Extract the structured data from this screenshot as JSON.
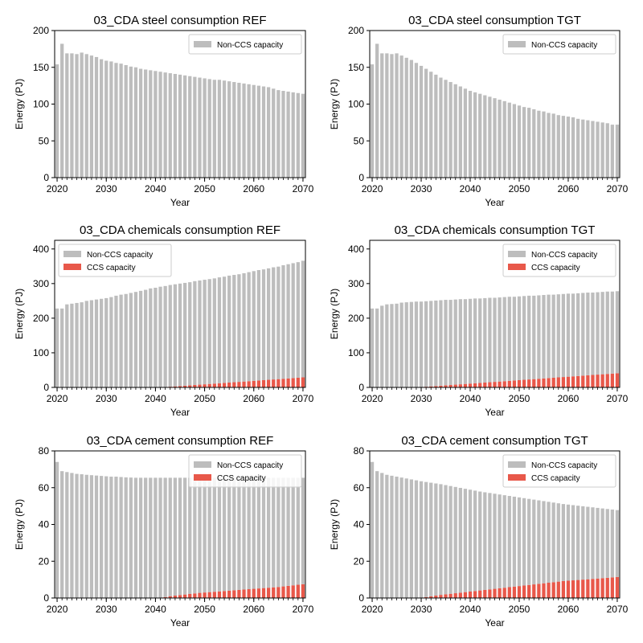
{
  "colors": {
    "ccs": "#e8584a",
    "nonccs": "#bdbdbd",
    "axis": "#000000",
    "background": "#ffffff"
  },
  "chart_data": [
    {
      "type": "bar",
      "stacked": true,
      "title": "03_CDA steel consumption REF",
      "xlabel": "Year",
      "ylabel": "Energy (PJ)",
      "x_start": 2020,
      "x_end": 2070,
      "xticks": [
        2020,
        2030,
        2040,
        2050,
        2060,
        2070
      ],
      "ylim": [
        0,
        200
      ],
      "yticks": [
        0,
        50,
        100,
        150,
        200
      ],
      "legend": "top-right",
      "series": [
        {
          "name": "Non-CCS capacity",
          "color": "#bdbdbd",
          "values": [
            154,
            182,
            169,
            169,
            168,
            170,
            168,
            166,
            164,
            161,
            159,
            158,
            156,
            155,
            153,
            151,
            150,
            148,
            147,
            146,
            145,
            144,
            143,
            142,
            141,
            140,
            139,
            138,
            137,
            136,
            135,
            134,
            133,
            133,
            132,
            131,
            130,
            129,
            128,
            127,
            126,
            125,
            124,
            123,
            121,
            119,
            118,
            117,
            116,
            115,
            114
          ]
        }
      ]
    },
    {
      "type": "bar",
      "stacked": true,
      "title": "03_CDA steel consumption TGT",
      "xlabel": "Year",
      "ylabel": "Energy (PJ)",
      "x_start": 2020,
      "x_end": 2070,
      "xticks": [
        2020,
        2030,
        2040,
        2050,
        2060,
        2070
      ],
      "ylim": [
        0,
        200
      ],
      "yticks": [
        0,
        50,
        100,
        150,
        200
      ],
      "legend": "top-right",
      "series": [
        {
          "name": "Non-CCS capacity",
          "color": "#bdbdbd",
          "values": [
            154,
            182,
            169,
            169,
            168,
            169,
            166,
            163,
            160,
            156,
            152,
            148,
            144,
            140,
            136,
            133,
            130,
            127,
            124,
            121,
            118,
            116,
            114,
            112,
            110,
            108,
            106,
            104,
            102,
            100,
            98,
            96,
            95,
            93,
            91,
            90,
            88,
            87,
            85,
            84,
            83,
            82,
            80,
            79,
            78,
            77,
            76,
            75,
            74,
            72,
            72
          ]
        }
      ]
    },
    {
      "type": "bar",
      "stacked": true,
      "title": "03_CDA chemicals consumption REF",
      "xlabel": "Year",
      "ylabel": "Energy (PJ)",
      "x_start": 2020,
      "x_end": 2070,
      "xticks": [
        2020,
        2030,
        2040,
        2050,
        2060,
        2070
      ],
      "ylim": [
        0,
        425
      ],
      "yticks": [
        0,
        100,
        200,
        300,
        400
      ],
      "legend": "top-left",
      "series": [
        {
          "name": "CCS capacity",
          "color": "#e8584a",
          "values": [
            0,
            0,
            0,
            0,
            0,
            0,
            0,
            0,
            0,
            0,
            0,
            0,
            0,
            0,
            0,
            0,
            0,
            0,
            0,
            0,
            0,
            0,
            1,
            2,
            3,
            4,
            5,
            6,
            7,
            8,
            9,
            10,
            11,
            12,
            13,
            14,
            15,
            16,
            17,
            18,
            19,
            20,
            21,
            22,
            23,
            24,
            25,
            26,
            27,
            28,
            29
          ]
        },
        {
          "name": "Non-CCS capacity",
          "color": "#bdbdbd",
          "values": [
            228,
            228,
            240,
            242,
            244,
            246,
            250,
            252,
            254,
            256,
            258,
            261,
            265,
            268,
            270,
            273,
            276,
            279,
            282,
            286,
            288,
            291,
            292,
            294,
            295,
            296,
            297,
            298,
            300,
            301,
            302,
            303,
            304,
            306,
            307,
            309,
            310,
            311,
            313,
            315,
            317,
            319,
            320,
            322,
            324,
            325,
            328,
            330,
            332,
            334,
            337
          ]
        }
      ]
    },
    {
      "type": "bar",
      "stacked": true,
      "title": "03_CDA chemicals consumption TGT",
      "xlabel": "Year",
      "ylabel": "Energy (PJ)",
      "x_start": 2020,
      "x_end": 2070,
      "xticks": [
        2020,
        2030,
        2040,
        2050,
        2060,
        2070
      ],
      "ylim": [
        0,
        425
      ],
      "yticks": [
        0,
        100,
        200,
        300,
        400
      ],
      "legend": "top-right",
      "series": [
        {
          "name": "CCS capacity",
          "color": "#e8584a",
          "values": [
            0,
            0,
            0,
            0,
            0,
            0,
            0,
            0,
            0,
            0,
            1,
            2,
            3,
            4,
            5,
            6,
            7,
            8,
            9,
            10,
            11,
            12,
            13,
            14,
            15,
            16,
            17,
            18,
            19,
            20,
            21,
            22,
            23,
            24,
            25,
            26,
            27,
            28,
            29,
            30,
            31,
            32,
            33,
            34,
            35,
            36,
            37,
            38,
            39,
            40,
            41
          ]
        },
        {
          "name": "Non-CCS capacity",
          "color": "#bdbdbd",
          "values": [
            228,
            228,
            236,
            240,
            241,
            242,
            245,
            246,
            247,
            248,
            247,
            247,
            247,
            247,
            247,
            247,
            246,
            246,
            246,
            245,
            245,
            245,
            244,
            244,
            244,
            243,
            243,
            243,
            243,
            242,
            242,
            242,
            242,
            241,
            241,
            241,
            241,
            240,
            240,
            240,
            240,
            239,
            239,
            239,
            239,
            238,
            238,
            238,
            238,
            237,
            237
          ]
        }
      ]
    },
    {
      "type": "bar",
      "stacked": true,
      "title": "03_CDA cement consumption REF",
      "xlabel": "Year",
      "ylabel": "Energy (PJ)",
      "x_start": 2020,
      "x_end": 2070,
      "xticks": [
        2020,
        2030,
        2040,
        2050,
        2060,
        2070
      ],
      "ylim": [
        0,
        80
      ],
      "yticks": [
        0,
        20,
        40,
        60,
        80
      ],
      "legend": "top-right",
      "series": [
        {
          "name": "CCS capacity",
          "color": "#e8584a",
          "values": [
            0,
            0,
            0,
            0,
            0,
            0,
            0,
            0,
            0,
            0,
            0,
            0,
            0,
            0,
            0,
            0,
            0,
            0,
            0,
            0,
            0,
            0,
            0.5,
            1,
            1.3,
            1.6,
            1.9,
            2.2,
            2.5,
            2.8,
            3.0,
            3.2,
            3.4,
            3.6,
            3.8,
            4.0,
            4.2,
            4.4,
            4.6,
            4.8,
            5.0,
            5.2,
            5.4,
            5.6,
            5.8,
            6.0,
            6.3,
            6.6,
            6.9,
            7.2,
            7.5
          ]
        },
        {
          "name": "Non-CCS capacity",
          "color": "#bdbdbd",
          "values": [
            74,
            69,
            68.5,
            68,
            67.5,
            67.3,
            67,
            66.8,
            66.6,
            66.4,
            66.2,
            66,
            66,
            65.8,
            65.6,
            65.5,
            65.4,
            65.4,
            65.4,
            65.4,
            65.4,
            65.4,
            64.9,
            64.4,
            64.1,
            63.8,
            63.5,
            63.2,
            62.9,
            62.6,
            62.4,
            62.2,
            62.0,
            61.8,
            61.6,
            61.4,
            61.2,
            61.0,
            60.8,
            60.6,
            60.4,
            60.2,
            60.0,
            59.8,
            59.6,
            59.4,
            59.1,
            58.8,
            58.5,
            58.2,
            57.9
          ]
        }
      ]
    },
    {
      "type": "bar",
      "stacked": true,
      "title": "03_CDA cement consumption TGT",
      "xlabel": "Year",
      "ylabel": "Energy (PJ)",
      "x_start": 2020,
      "x_end": 2070,
      "xticks": [
        2020,
        2030,
        2040,
        2050,
        2060,
        2070
      ],
      "ylim": [
        0,
        80
      ],
      "yticks": [
        0,
        20,
        40,
        60,
        80
      ],
      "legend": "top-right",
      "series": [
        {
          "name": "CCS capacity",
          "color": "#e8584a",
          "values": [
            0,
            0,
            0,
            0,
            0,
            0,
            0,
            0,
            0,
            0,
            0,
            0.5,
            0.9,
            1.3,
            1.7,
            2.0,
            2.3,
            2.6,
            2.9,
            3.2,
            3.5,
            3.8,
            4.1,
            4.4,
            4.7,
            5.0,
            5.3,
            5.6,
            5.9,
            6.2,
            6.5,
            6.8,
            7.1,
            7.4,
            7.7,
            8.0,
            8.3,
            8.6,
            8.9,
            9.2,
            9.4,
            9.6,
            9.8,
            10.0,
            10.2,
            10.4,
            10.6,
            10.8,
            11.0,
            11.2,
            11.4
          ]
        },
        {
          "name": "Non-CCS capacity",
          "color": "#bdbdbd",
          "values": [
            74,
            69,
            68,
            67,
            66.5,
            66,
            65.5,
            65,
            64.5,
            64,
            63.5,
            62.6,
            61.8,
            61.0,
            60.2,
            59.4,
            58.6,
            57.8,
            57.0,
            56.2,
            55.4,
            54.6,
            53.8,
            53.1,
            52.4,
            51.7,
            51.0,
            50.3,
            49.6,
            48.9,
            48.2,
            47.5,
            46.8,
            46.1,
            45.4,
            44.7,
            44.0,
            43.3,
            42.6,
            41.9,
            41.4,
            40.9,
            40.4,
            39.9,
            39.4,
            38.9,
            38.4,
            37.9,
            37.4,
            36.9,
            36.4
          ]
        }
      ]
    }
  ]
}
